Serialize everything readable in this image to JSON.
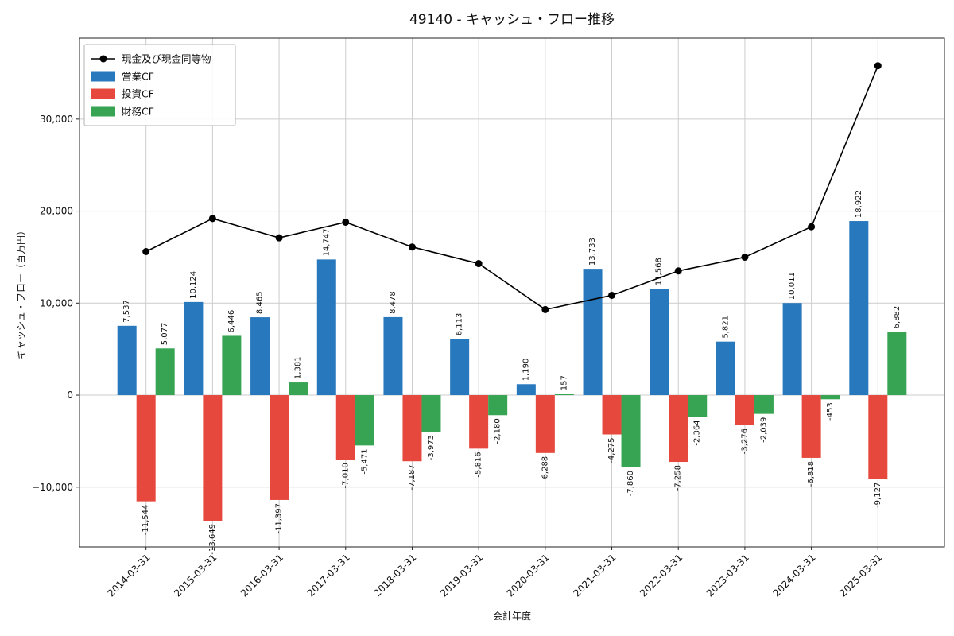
{
  "chart_data": {
    "type": "bar",
    "title": "49140 - キャッシュ・フロー推移",
    "xlabel": "会計年度",
    "ylabel": "キャッシュ・フロー（百万円）",
    "categories": [
      "2014-03-31",
      "2015-03-31",
      "2016-03-31",
      "2017-03-31",
      "2018-03-31",
      "2019-03-31",
      "2020-03-31",
      "2021-03-31",
      "2022-03-31",
      "2023-03-31",
      "2024-03-31",
      "2025-03-31"
    ],
    "series": [
      {
        "name": "営業CF",
        "key": "operating-cf",
        "type": "bar",
        "color": "#2878be",
        "values": [
          7537,
          10124,
          8465,
          14747,
          8478,
          6113,
          1190,
          13733,
          11568,
          5821,
          10011,
          18922
        ]
      },
      {
        "name": "投資CF",
        "key": "investing-cf",
        "type": "bar",
        "color": "#e6483d",
        "values": [
          -11544,
          -13649,
          -11397,
          -7010,
          -7187,
          -5816,
          -6288,
          -4275,
          -7258,
          -3276,
          -6818,
          -9127
        ]
      },
      {
        "name": "財務CF",
        "key": "financing-cf",
        "type": "bar",
        "color": "#36a452",
        "values": [
          5077,
          6446,
          1381,
          -5471,
          -3973,
          -2180,
          157,
          -7860,
          -2364,
          -2039,
          -453,
          6882
        ]
      },
      {
        "name": "現金及び現金同等物",
        "key": "cash-and-equivalents",
        "type": "line",
        "color": "#000000",
        "values": [
          15600,
          19200,
          17100,
          18800,
          16100,
          14300,
          9300,
          10850,
          13500,
          15000,
          18300,
          35800
        ]
      }
    ],
    "yticks": [
      -10000,
      0,
      10000,
      20000,
      30000
    ],
    "ylim": [
      -16500,
      38800
    ],
    "grid": true,
    "bar_value_labels": true,
    "legend_position": "upper-left",
    "colors": {
      "grid": "#cccccc",
      "spine": "#222222",
      "plot_background": "#ffffff",
      "legend_border": "#b3b3b3",
      "bar_label_text": "#111111"
    }
  }
}
